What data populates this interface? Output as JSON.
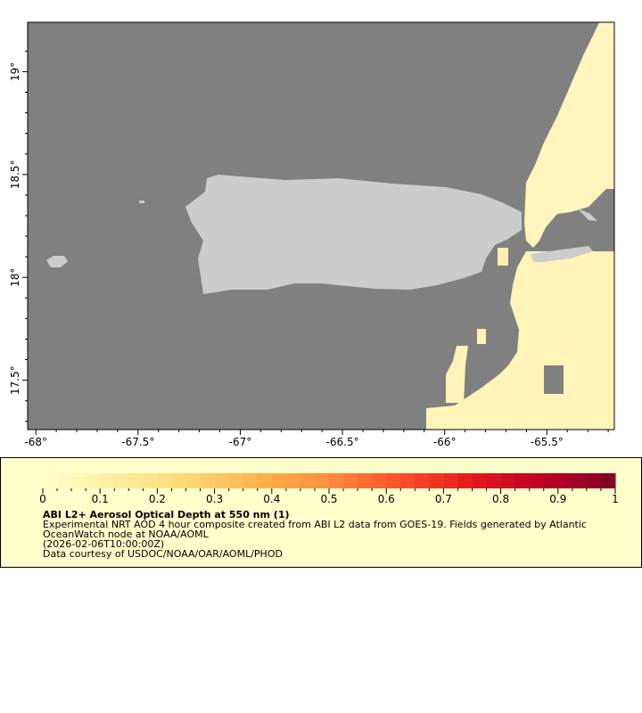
{
  "map": {
    "lon_ticks": [
      "-68°",
      "-67.5°",
      "-67°",
      "-66.5°",
      "-66°",
      "-65.5°"
    ],
    "lon_values": [
      -68,
      -67.5,
      -67,
      -66.5,
      -66,
      -65.5
    ],
    "lat_ticks": [
      "19°",
      "18.5°",
      "18°",
      "17.5°"
    ],
    "lat_values": [
      19,
      18.5,
      18,
      17.5
    ],
    "lon_range": [
      -68.04,
      -65.17
    ],
    "lat_range": [
      17.26,
      19.24
    ],
    "colors": {
      "ocean_nodata": "#808080",
      "land": "#cccccc",
      "aod_low": "#fff5bd"
    }
  },
  "legend": {
    "colorbar_ticks": [
      "0",
      "0.1",
      "0.2",
      "0.3",
      "0.4",
      "0.5",
      "0.6",
      "0.7",
      "0.8",
      "0.9",
      "1"
    ],
    "colorbar_range": [
      0,
      1
    ],
    "colormap": "YlOrRd",
    "title": "ABI L2+ Aerosol Optical Depth at 550 nm (1)",
    "line1": "Experimental NRT AOD 4 hour composite created from ABI L2 data from GOES-19. Fields generated by Atlantic",
    "line2": "OceanWatch node at NOAA/AOML",
    "line3": "(2026-02-06T10:00:00Z)",
    "line4": "Data courtesy of USDOC/NOAA/OAR/AOML/PHOD"
  }
}
